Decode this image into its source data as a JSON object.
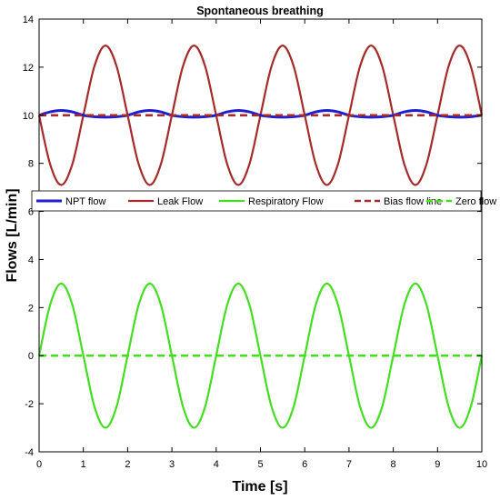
{
  "chart_data": {
    "type": "line",
    "title": "Spontaneous breathing",
    "xlabel": "Time [s]",
    "ylabel": "Flows [L/min]",
    "xlim": [
      0,
      10
    ],
    "ylim": [
      -4,
      14
    ],
    "xticks": [
      0,
      1,
      2,
      3,
      4,
      5,
      6,
      7,
      8,
      9,
      10
    ],
    "yticks": [
      -4,
      -2,
      0,
      2,
      4,
      6,
      8,
      10,
      12,
      14
    ],
    "grid": false,
    "legend_placement": "inside, spanning the top of the lower half",
    "series": [
      {
        "name": "NPT flow",
        "color": "#1f1fd0",
        "style": "solid",
        "x": [
          0,
          0.25,
          0.5,
          0.75,
          1,
          1.25,
          1.5,
          1.75,
          2,
          2.25,
          2.5,
          2.75,
          3,
          3.25,
          3.5,
          3.75,
          4,
          4.25,
          4.5,
          4.75,
          5,
          5.25,
          5.5,
          5.75,
          6,
          6.25,
          6.5,
          6.75,
          7,
          7.25,
          7.5,
          7.75,
          8,
          8.25,
          8.5,
          8.75,
          9,
          9.25,
          9.5,
          9.75,
          10
        ],
        "y": [
          10.0,
          10.14,
          10.2,
          10.14,
          10.0,
          9.94,
          9.92,
          9.94,
          10.0,
          10.14,
          10.2,
          10.14,
          10.0,
          9.94,
          9.92,
          9.94,
          10.0,
          10.14,
          10.2,
          10.14,
          10.0,
          9.94,
          9.92,
          9.94,
          10.0,
          10.14,
          10.2,
          10.14,
          10.0,
          9.94,
          9.92,
          9.94,
          10.0,
          10.14,
          10.2,
          10.14,
          10.0,
          9.94,
          9.92,
          9.94,
          10.0
        ]
      },
      {
        "name": "Leak Flow",
        "color": "#a52a2a",
        "style": "solid",
        "x": [
          0,
          0.25,
          0.5,
          0.75,
          1,
          1.25,
          1.5,
          1.75,
          2,
          2.25,
          2.5,
          2.75,
          3,
          3.25,
          3.5,
          3.75,
          4,
          4.25,
          4.5,
          4.75,
          5,
          5.25,
          5.5,
          5.75,
          6,
          6.25,
          6.5,
          6.75,
          7,
          7.25,
          7.5,
          7.75,
          8,
          8.25,
          8.5,
          8.75,
          9,
          9.25,
          9.5,
          9.75,
          10
        ],
        "y": [
          10.0,
          7.96,
          7.1,
          7.96,
          10.0,
          12.04,
          12.9,
          12.04,
          10.0,
          7.96,
          7.1,
          7.96,
          10.0,
          12.04,
          12.9,
          12.04,
          10.0,
          7.96,
          7.1,
          7.96,
          10.0,
          12.04,
          12.9,
          12.04,
          10.0,
          7.96,
          7.1,
          7.96,
          10.0,
          12.04,
          12.9,
          12.04,
          10.0,
          7.96,
          7.1,
          7.96,
          10.0,
          12.04,
          12.9,
          12.04,
          10.0
        ]
      },
      {
        "name": "Respiratory Flow",
        "color": "#44dd22",
        "style": "solid",
        "x": [
          0,
          0.25,
          0.5,
          0.75,
          1,
          1.25,
          1.5,
          1.75,
          2,
          2.25,
          2.5,
          2.75,
          3,
          3.25,
          3.5,
          3.75,
          4,
          4.25,
          4.5,
          4.75,
          5,
          5.25,
          5.5,
          5.75,
          6,
          6.25,
          6.5,
          6.75,
          7,
          7.25,
          7.5,
          7.75,
          8,
          8.25,
          8.5,
          8.75,
          9,
          9.25,
          9.5,
          9.75,
          10
        ],
        "y": [
          0,
          2.12,
          3.0,
          2.12,
          0,
          -2.12,
          -3.0,
          -2.12,
          0,
          2.12,
          3.0,
          2.12,
          0,
          -2.12,
          -3.0,
          -2.12,
          0,
          2.12,
          3.0,
          2.12,
          0,
          -2.12,
          -3.0,
          -2.12,
          0,
          2.12,
          3.0,
          2.12,
          0,
          -2.12,
          -3.0,
          -2.12,
          0,
          2.12,
          3.0,
          2.12,
          0,
          -2.12,
          -3.0,
          -2.12,
          0
        ]
      },
      {
        "name": "Bias flow line",
        "color": "#a52a2a",
        "style": "dashed",
        "x": [
          0,
          10
        ],
        "y": [
          10,
          10
        ]
      },
      {
        "name": "Zero flow line",
        "color": "#44dd22",
        "style": "dashed",
        "x": [
          0,
          10
        ],
        "y": [
          0,
          0
        ]
      }
    ]
  }
}
